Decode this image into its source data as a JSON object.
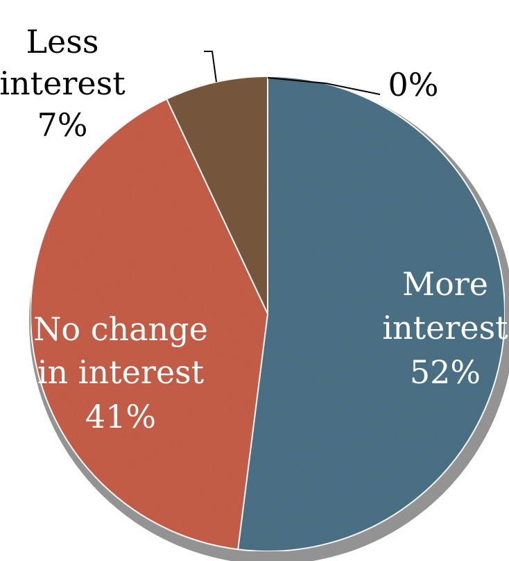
{
  "chart_data": {
    "type": "pie",
    "categories": [
      "More interest",
      "No change in interest",
      "Less interest",
      ""
    ],
    "values": [
      52,
      41,
      7,
      0
    ],
    "value_labels": [
      "52%",
      "41%",
      "7%",
      "0%"
    ],
    "colors": [
      "#4d7388",
      "#c9604a",
      "#7a5a3e",
      "#4d7388"
    ],
    "start": "12 o'clock, clockwise",
    "labels": {
      "more": [
        "More",
        "interest",
        "52%"
      ],
      "nochange": [
        "No change",
        "in interest",
        "41%"
      ],
      "less": [
        "Less",
        "interest",
        "7%"
      ],
      "zero": "0%"
    }
  }
}
